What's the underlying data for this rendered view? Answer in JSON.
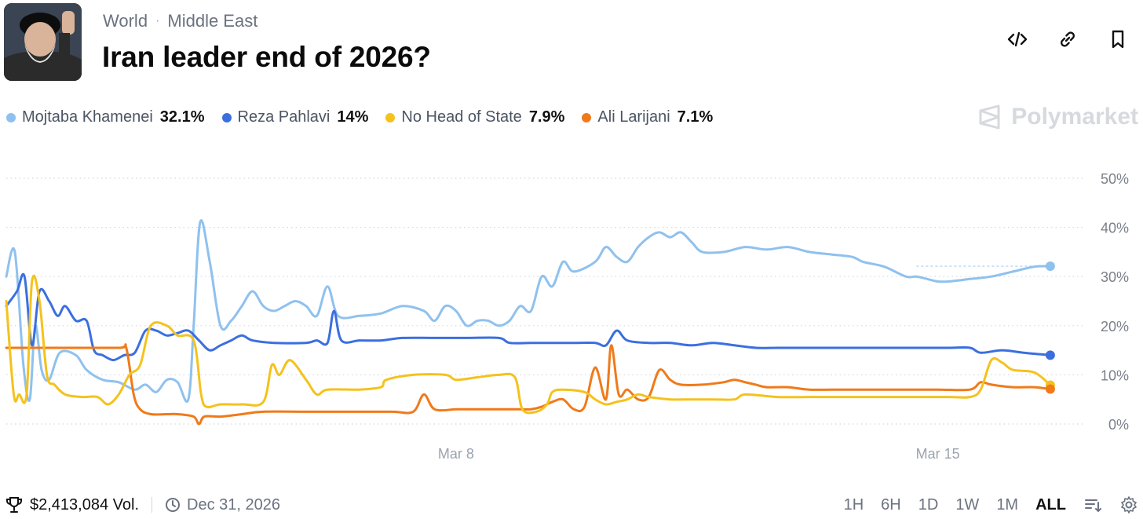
{
  "header": {
    "breadcrumb": [
      "World",
      "Middle East"
    ],
    "title": "Iran leader end of 2026?"
  },
  "brand": {
    "name": "Polymarket"
  },
  "legend": [
    {
      "name": "Mojtaba Khamenei",
      "value": "32.1%",
      "color": "#8fc1ee"
    },
    {
      "name": "Reza Pahlavi",
      "value": "14%",
      "color": "#3b6fe0"
    },
    {
      "name": "No Head of State",
      "value": "7.9%",
      "color": "#f5c21c"
    },
    {
      "name": "Ali Larijani",
      "value": "7.1%",
      "color": "#f07a1a"
    }
  ],
  "footer": {
    "volume": "$2,413,084 Vol.",
    "end_date": "Dec 31, 2026",
    "ranges": [
      "1H",
      "6H",
      "1D",
      "1W",
      "1M",
      "ALL"
    ],
    "active_range": "ALL"
  },
  "chart_data": {
    "type": "line",
    "title": "Iran leader end of 2026?",
    "x_range": [
      0,
      100
    ],
    "x_ticks": [
      {
        "x": 42,
        "label": "Mar 8"
      },
      {
        "x": 87,
        "label": "Mar 15"
      }
    ],
    "ylim": [
      0,
      50
    ],
    "y_ticks": [
      0,
      10,
      20,
      30,
      40,
      50
    ],
    "y_tick_labels": [
      "0%",
      "10%",
      "20%",
      "30%",
      "40%",
      "50%"
    ],
    "grid": true,
    "series": [
      {
        "name": "Mojtaba Khamenei",
        "color": "#8fc1ee",
        "last": 32.1,
        "points": [
          [
            0,
            30
          ],
          [
            0.8,
            35
          ],
          [
            1.6,
            12
          ],
          [
            2.2,
            5
          ],
          [
            2.7,
            20
          ],
          [
            3.3,
            11
          ],
          [
            4,
            9
          ],
          [
            5,
            14.5
          ],
          [
            6.5,
            14
          ],
          [
            7.5,
            11
          ],
          [
            9,
            9
          ],
          [
            10.5,
            8.5
          ],
          [
            12,
            7
          ],
          [
            13,
            8
          ],
          [
            14,
            6.5
          ],
          [
            15,
            9
          ],
          [
            16,
            8.5
          ],
          [
            17,
            5
          ],
          [
            17.5,
            20
          ],
          [
            18.1,
            41
          ],
          [
            19,
            33
          ],
          [
            20,
            20
          ],
          [
            21,
            21
          ],
          [
            22,
            24
          ],
          [
            23,
            27
          ],
          [
            24,
            24
          ],
          [
            25,
            23
          ],
          [
            26,
            24
          ],
          [
            27,
            25
          ],
          [
            28,
            24
          ],
          [
            29,
            22
          ],
          [
            30,
            28
          ],
          [
            31,
            22
          ],
          [
            33,
            22
          ],
          [
            35,
            22.5
          ],
          [
            37,
            24
          ],
          [
            39,
            23
          ],
          [
            40,
            21
          ],
          [
            41,
            24
          ],
          [
            42,
            23
          ],
          [
            43,
            20
          ],
          [
            44,
            21
          ],
          [
            45,
            21
          ],
          [
            46,
            20
          ],
          [
            47,
            21
          ],
          [
            48,
            24
          ],
          [
            49,
            23
          ],
          [
            50,
            30
          ],
          [
            51,
            28
          ],
          [
            52,
            33
          ],
          [
            53,
            31
          ],
          [
            55,
            33
          ],
          [
            56,
            36
          ],
          [
            57,
            34
          ],
          [
            58,
            33
          ],
          [
            59,
            36
          ],
          [
            60,
            38
          ],
          [
            61,
            39
          ],
          [
            62,
            38
          ],
          [
            63,
            39
          ],
          [
            64,
            37
          ],
          [
            65,
            35
          ],
          [
            67,
            35
          ],
          [
            69,
            36
          ],
          [
            71,
            35.5
          ],
          [
            73,
            36
          ],
          [
            75,
            35
          ],
          [
            77,
            34.5
          ],
          [
            79,
            34
          ],
          [
            80,
            33
          ],
          [
            82,
            32
          ],
          [
            84,
            30
          ],
          [
            85,
            30
          ],
          [
            86,
            29.5
          ],
          [
            87,
            29
          ],
          [
            88,
            29
          ],
          [
            90,
            29.5
          ],
          [
            92,
            30
          ],
          [
            94,
            31
          ],
          [
            96,
            32
          ],
          [
            97.5,
            32.1
          ]
        ]
      },
      {
        "name": "Reza Pahlavi",
        "color": "#3b6fe0",
        "last": 14.0,
        "points": [
          [
            0,
            24
          ],
          [
            1,
            27
          ],
          [
            1.7,
            30
          ],
          [
            2.4,
            16
          ],
          [
            3.1,
            27
          ],
          [
            4,
            25
          ],
          [
            4.8,
            22
          ],
          [
            5.5,
            24
          ],
          [
            6.5,
            21
          ],
          [
            7.5,
            21
          ],
          [
            8.2,
            15
          ],
          [
            9,
            14
          ],
          [
            10,
            13
          ],
          [
            11,
            14
          ],
          [
            12,
            14.5
          ],
          [
            13,
            19
          ],
          [
            14,
            19
          ],
          [
            15,
            18
          ],
          [
            16,
            18.5
          ],
          [
            17,
            19
          ],
          [
            18,
            17
          ],
          [
            19,
            15
          ],
          [
            20,
            16
          ],
          [
            21,
            17
          ],
          [
            22,
            18
          ],
          [
            23,
            17
          ],
          [
            25,
            16.5
          ],
          [
            28,
            16.5
          ],
          [
            29,
            17
          ],
          [
            30,
            16.5
          ],
          [
            30.6,
            23
          ],
          [
            31.3,
            17
          ],
          [
            33,
            17
          ],
          [
            35,
            17
          ],
          [
            37,
            17.5
          ],
          [
            40,
            17.5
          ],
          [
            43,
            17.5
          ],
          [
            46,
            17.5
          ],
          [
            47,
            16.5
          ],
          [
            49,
            16.5
          ],
          [
            51,
            16.5
          ],
          [
            53,
            16.5
          ],
          [
            55,
            16.5
          ],
          [
            56,
            16
          ],
          [
            57,
            19
          ],
          [
            58,
            17
          ],
          [
            60,
            16.5
          ],
          [
            62,
            16.5
          ],
          [
            64,
            16
          ],
          [
            66,
            16.5
          ],
          [
            68,
            16
          ],
          [
            70,
            15.5
          ],
          [
            72,
            15.5
          ],
          [
            74,
            15.5
          ],
          [
            76,
            15.5
          ],
          [
            78,
            15.5
          ],
          [
            80,
            15.5
          ],
          [
            82,
            15.5
          ],
          [
            84,
            15.5
          ],
          [
            86,
            15.5
          ],
          [
            88,
            15.5
          ],
          [
            90,
            15.5
          ],
          [
            91,
            14.5
          ],
          [
            93,
            15
          ],
          [
            95,
            14.5
          ],
          [
            97.5,
            14
          ]
        ]
      },
      {
        "name": "No Head of State",
        "color": "#f5c21c",
        "last": 7.9,
        "points": [
          [
            0,
            25
          ],
          [
            0.7,
            6
          ],
          [
            1.2,
            6
          ],
          [
            1.9,
            6
          ],
          [
            2.4,
            29
          ],
          [
            3.1,
            25
          ],
          [
            3.8,
            10
          ],
          [
            4.5,
            8
          ],
          [
            5.5,
            6
          ],
          [
            7,
            5.5
          ],
          [
            8.5,
            5.5
          ],
          [
            9.5,
            4
          ],
          [
            10.5,
            6
          ],
          [
            11.5,
            10
          ],
          [
            12.5,
            12
          ],
          [
            13.5,
            20
          ],
          [
            15,
            20
          ],
          [
            16,
            18
          ],
          [
            17.5,
            17
          ],
          [
            18.2,
            6
          ],
          [
            18.7,
            3.5
          ],
          [
            20,
            4
          ],
          [
            22,
            4
          ],
          [
            24,
            4.5
          ],
          [
            24.8,
            12
          ],
          [
            25.5,
            10
          ],
          [
            26.5,
            13
          ],
          [
            28,
            9
          ],
          [
            29,
            6
          ],
          [
            30,
            7
          ],
          [
            33,
            7
          ],
          [
            35,
            7.5
          ],
          [
            35.5,
            9
          ],
          [
            38,
            10
          ],
          [
            41,
            10
          ],
          [
            42,
            9
          ],
          [
            44,
            9.5
          ],
          [
            46,
            10
          ],
          [
            47.5,
            9.5
          ],
          [
            48.2,
            3
          ],
          [
            49.5,
            2.5
          ],
          [
            50.5,
            4
          ],
          [
            51,
            6.5
          ],
          [
            52,
            7
          ],
          [
            54,
            6.5
          ],
          [
            55,
            5
          ],
          [
            56,
            4
          ],
          [
            57,
            4.5
          ],
          [
            58,
            5
          ],
          [
            59,
            6
          ],
          [
            60,
            5.5
          ],
          [
            62,
            5
          ],
          [
            64,
            5
          ],
          [
            66,
            5
          ],
          [
            68,
            5
          ],
          [
            69,
            6
          ],
          [
            72,
            5.5
          ],
          [
            75,
            5.5
          ],
          [
            78,
            5.5
          ],
          [
            81,
            5.5
          ],
          [
            84,
            5.5
          ],
          [
            88,
            5.5
          ],
          [
            90,
            5.5
          ],
          [
            91,
            7
          ],
          [
            92,
            13
          ],
          [
            93,
            12.5
          ],
          [
            94,
            11
          ],
          [
            96,
            10.5
          ],
          [
            97.5,
            7.9
          ]
        ]
      },
      {
        "name": "Ali Larijani",
        "color": "#f07a1a",
        "last": 7.1,
        "points": [
          [
            0,
            15.5
          ],
          [
            5,
            15.5
          ],
          [
            10.5,
            15.5
          ],
          [
            11.2,
            15.5
          ],
          [
            11.9,
            6
          ],
          [
            12.5,
            3
          ],
          [
            13.5,
            2
          ],
          [
            15,
            2
          ],
          [
            16,
            2
          ],
          [
            17.5,
            1.5
          ],
          [
            18,
            0
          ],
          [
            18.5,
            1.5
          ],
          [
            20,
            1.5
          ],
          [
            22,
            2
          ],
          [
            24,
            2.5
          ],
          [
            28,
            2.5
          ],
          [
            32,
            2.5
          ],
          [
            36,
            2.5
          ],
          [
            38,
            2.5
          ],
          [
            39,
            6
          ],
          [
            40,
            3
          ],
          [
            42,
            3
          ],
          [
            43,
            3
          ],
          [
            45,
            3
          ],
          [
            47,
            3
          ],
          [
            48,
            3
          ],
          [
            49,
            3
          ],
          [
            50,
            3.5
          ],
          [
            51,
            4.5
          ],
          [
            52,
            5
          ],
          [
            53,
            3
          ],
          [
            54,
            3.5
          ],
          [
            55,
            11.5
          ],
          [
            56,
            5
          ],
          [
            56.5,
            16
          ],
          [
            57.2,
            6
          ],
          [
            58,
            7
          ],
          [
            59,
            5
          ],
          [
            60,
            5.5
          ],
          [
            61,
            11
          ],
          [
            62,
            9
          ],
          [
            63,
            8
          ],
          [
            65,
            8
          ],
          [
            67,
            8.5
          ],
          [
            68,
            9
          ],
          [
            69,
            8.5
          ],
          [
            70,
            8
          ],
          [
            71,
            7.5
          ],
          [
            73,
            7.5
          ],
          [
            75,
            7
          ],
          [
            78,
            7
          ],
          [
            81,
            7
          ],
          [
            84,
            7
          ],
          [
            87,
            7
          ],
          [
            90,
            7
          ],
          [
            91,
            8.5
          ],
          [
            92,
            8
          ],
          [
            94,
            7.5
          ],
          [
            96,
            7.5
          ],
          [
            97.5,
            7.1
          ]
        ]
      }
    ]
  }
}
